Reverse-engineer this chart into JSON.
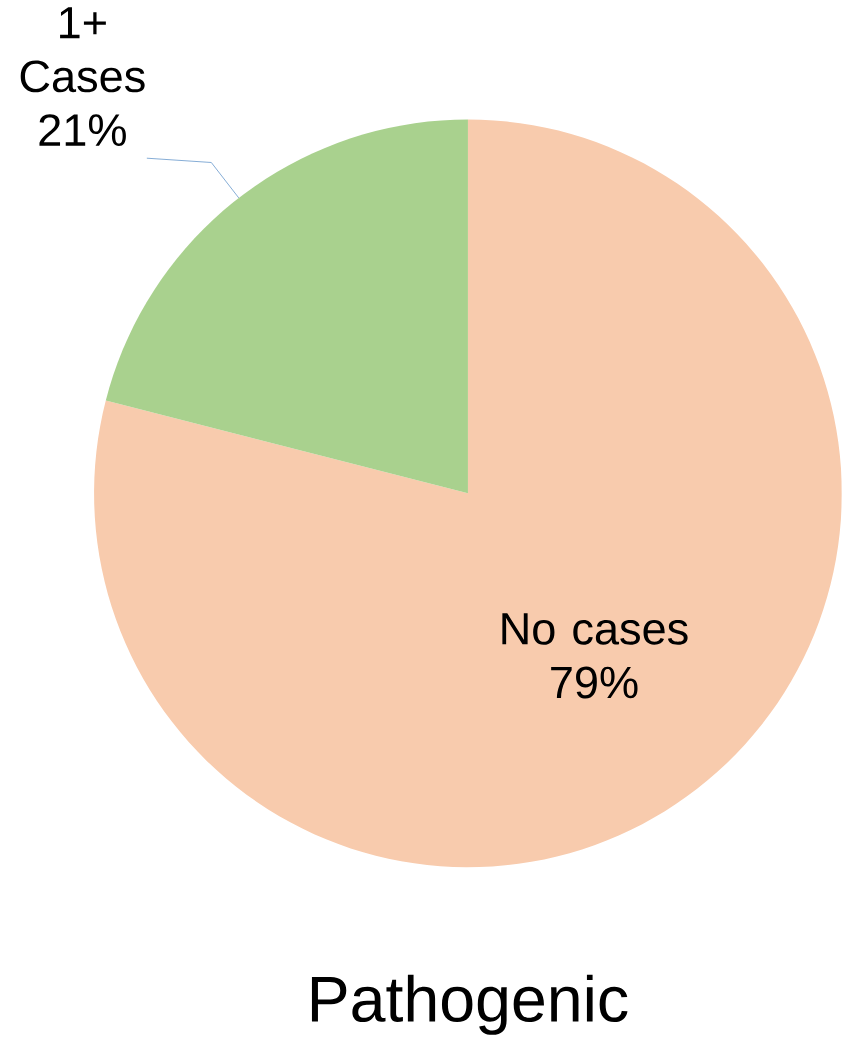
{
  "chart_data": {
    "type": "pie",
    "title": "Pathogenic",
    "categories": [
      "No cases",
      "1+ Cases"
    ],
    "values": [
      79,
      21
    ],
    "value_labels": [
      "79%",
      "21%"
    ],
    "colors": [
      "#f8cbad",
      "#a9d18e"
    ]
  }
}
